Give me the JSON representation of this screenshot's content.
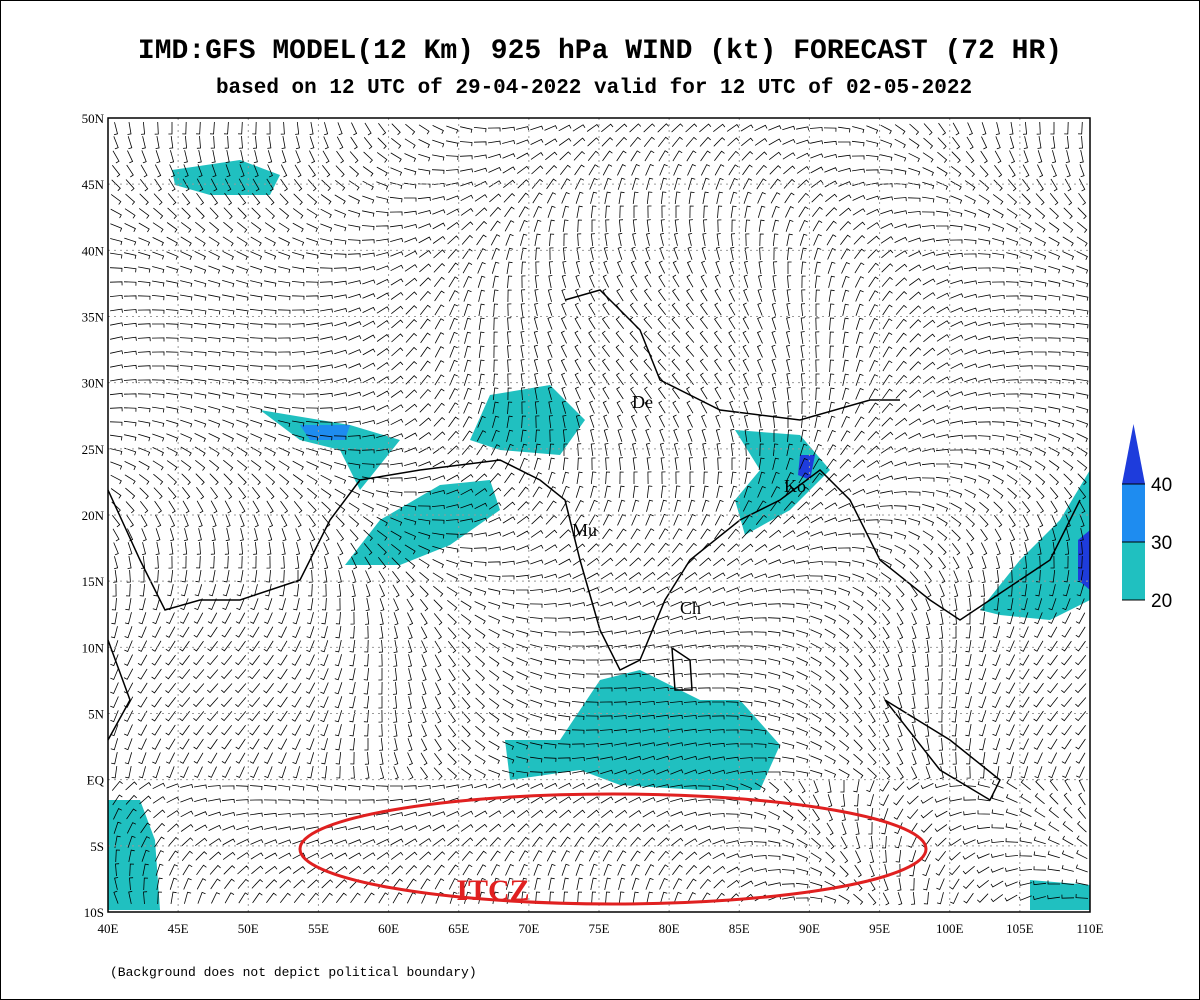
{
  "title": "IMD:GFS MODEL(12 Km) 925 hPa WIND (kt) FORECAST (72 HR)",
  "subtitle": "based on 12 UTC of 29-04-2022 valid for 12 UTC of 02-05-2022",
  "map": {
    "xlim": [
      40,
      110
    ],
    "ylim": [
      -10,
      50
    ],
    "xticks": [
      {
        "value": 40,
        "label": "40E"
      },
      {
        "value": 45,
        "label": "45E"
      },
      {
        "value": 50,
        "label": "50E"
      },
      {
        "value": 55,
        "label": "55E"
      },
      {
        "value": 60,
        "label": "60E"
      },
      {
        "value": 65,
        "label": "65E"
      },
      {
        "value": 70,
        "label": "70E"
      },
      {
        "value": 75,
        "label": "75E"
      },
      {
        "value": 80,
        "label": "80E"
      },
      {
        "value": 85,
        "label": "85E"
      },
      {
        "value": 90,
        "label": "90E"
      },
      {
        "value": 95,
        "label": "95E"
      },
      {
        "value": 100,
        "label": "100E"
      },
      {
        "value": 105,
        "label": "105E"
      },
      {
        "value": 110,
        "label": "110E"
      }
    ],
    "yticks": [
      {
        "value": -10,
        "label": "10S"
      },
      {
        "value": -5,
        "label": "5S"
      },
      {
        "value": 0,
        "label": "EQ"
      },
      {
        "value": 5,
        "label": "5N"
      },
      {
        "value": 10,
        "label": "10N"
      },
      {
        "value": 15,
        "label": "15N"
      },
      {
        "value": 20,
        "label": "20N"
      },
      {
        "value": 25,
        "label": "25N"
      },
      {
        "value": 30,
        "label": "30N"
      },
      {
        "value": 35,
        "label": "35N"
      },
      {
        "value": 40,
        "label": "40N"
      },
      {
        "value": 45,
        "label": "45N"
      },
      {
        "value": 50,
        "label": "50N"
      }
    ],
    "cities": [
      "De",
      "Ko",
      "Mu",
      "Ch"
    ],
    "annotation": "ITCZ"
  },
  "colorbar": {
    "ticks": [
      20,
      30,
      40
    ],
    "colors": [
      "#20c0c0",
      "#1e8cf0",
      "#1e3cdc"
    ]
  },
  "footnote": "(Background does not depict political boundary)"
}
